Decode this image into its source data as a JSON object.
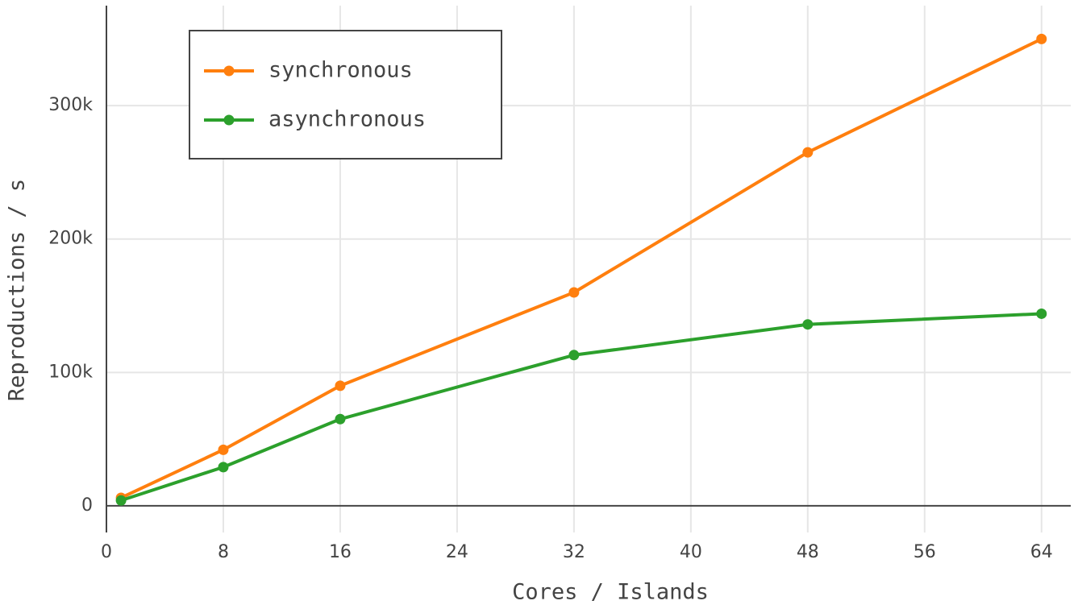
{
  "chart_data": {
    "type": "line",
    "xlabel": "Cores / Islands",
    "ylabel": "Reproductions / s",
    "x": [
      1,
      8,
      16,
      32,
      48,
      64
    ],
    "series": [
      {
        "name": "synchronous",
        "color": "#ff7f0e",
        "values": [
          6000,
          42000,
          90000,
          160000,
          265000,
          350000
        ]
      },
      {
        "name": "asynchronous",
        "color": "#2ca02c",
        "values": [
          4000,
          29000,
          65000,
          113000,
          136000,
          144000
        ]
      }
    ],
    "xlim": [
      0,
      66
    ],
    "ylim": [
      -20000,
      375000
    ],
    "xticks": [
      0,
      8,
      16,
      24,
      32,
      40,
      48,
      56,
      64
    ],
    "yticks": [
      0,
      {
        "value": 100000,
        "label": "100k"
      },
      {
        "value": 200000,
        "label": "200k"
      },
      {
        "value": 300000,
        "label": "300k"
      }
    ],
    "grid": true,
    "legend": "upper left"
  }
}
